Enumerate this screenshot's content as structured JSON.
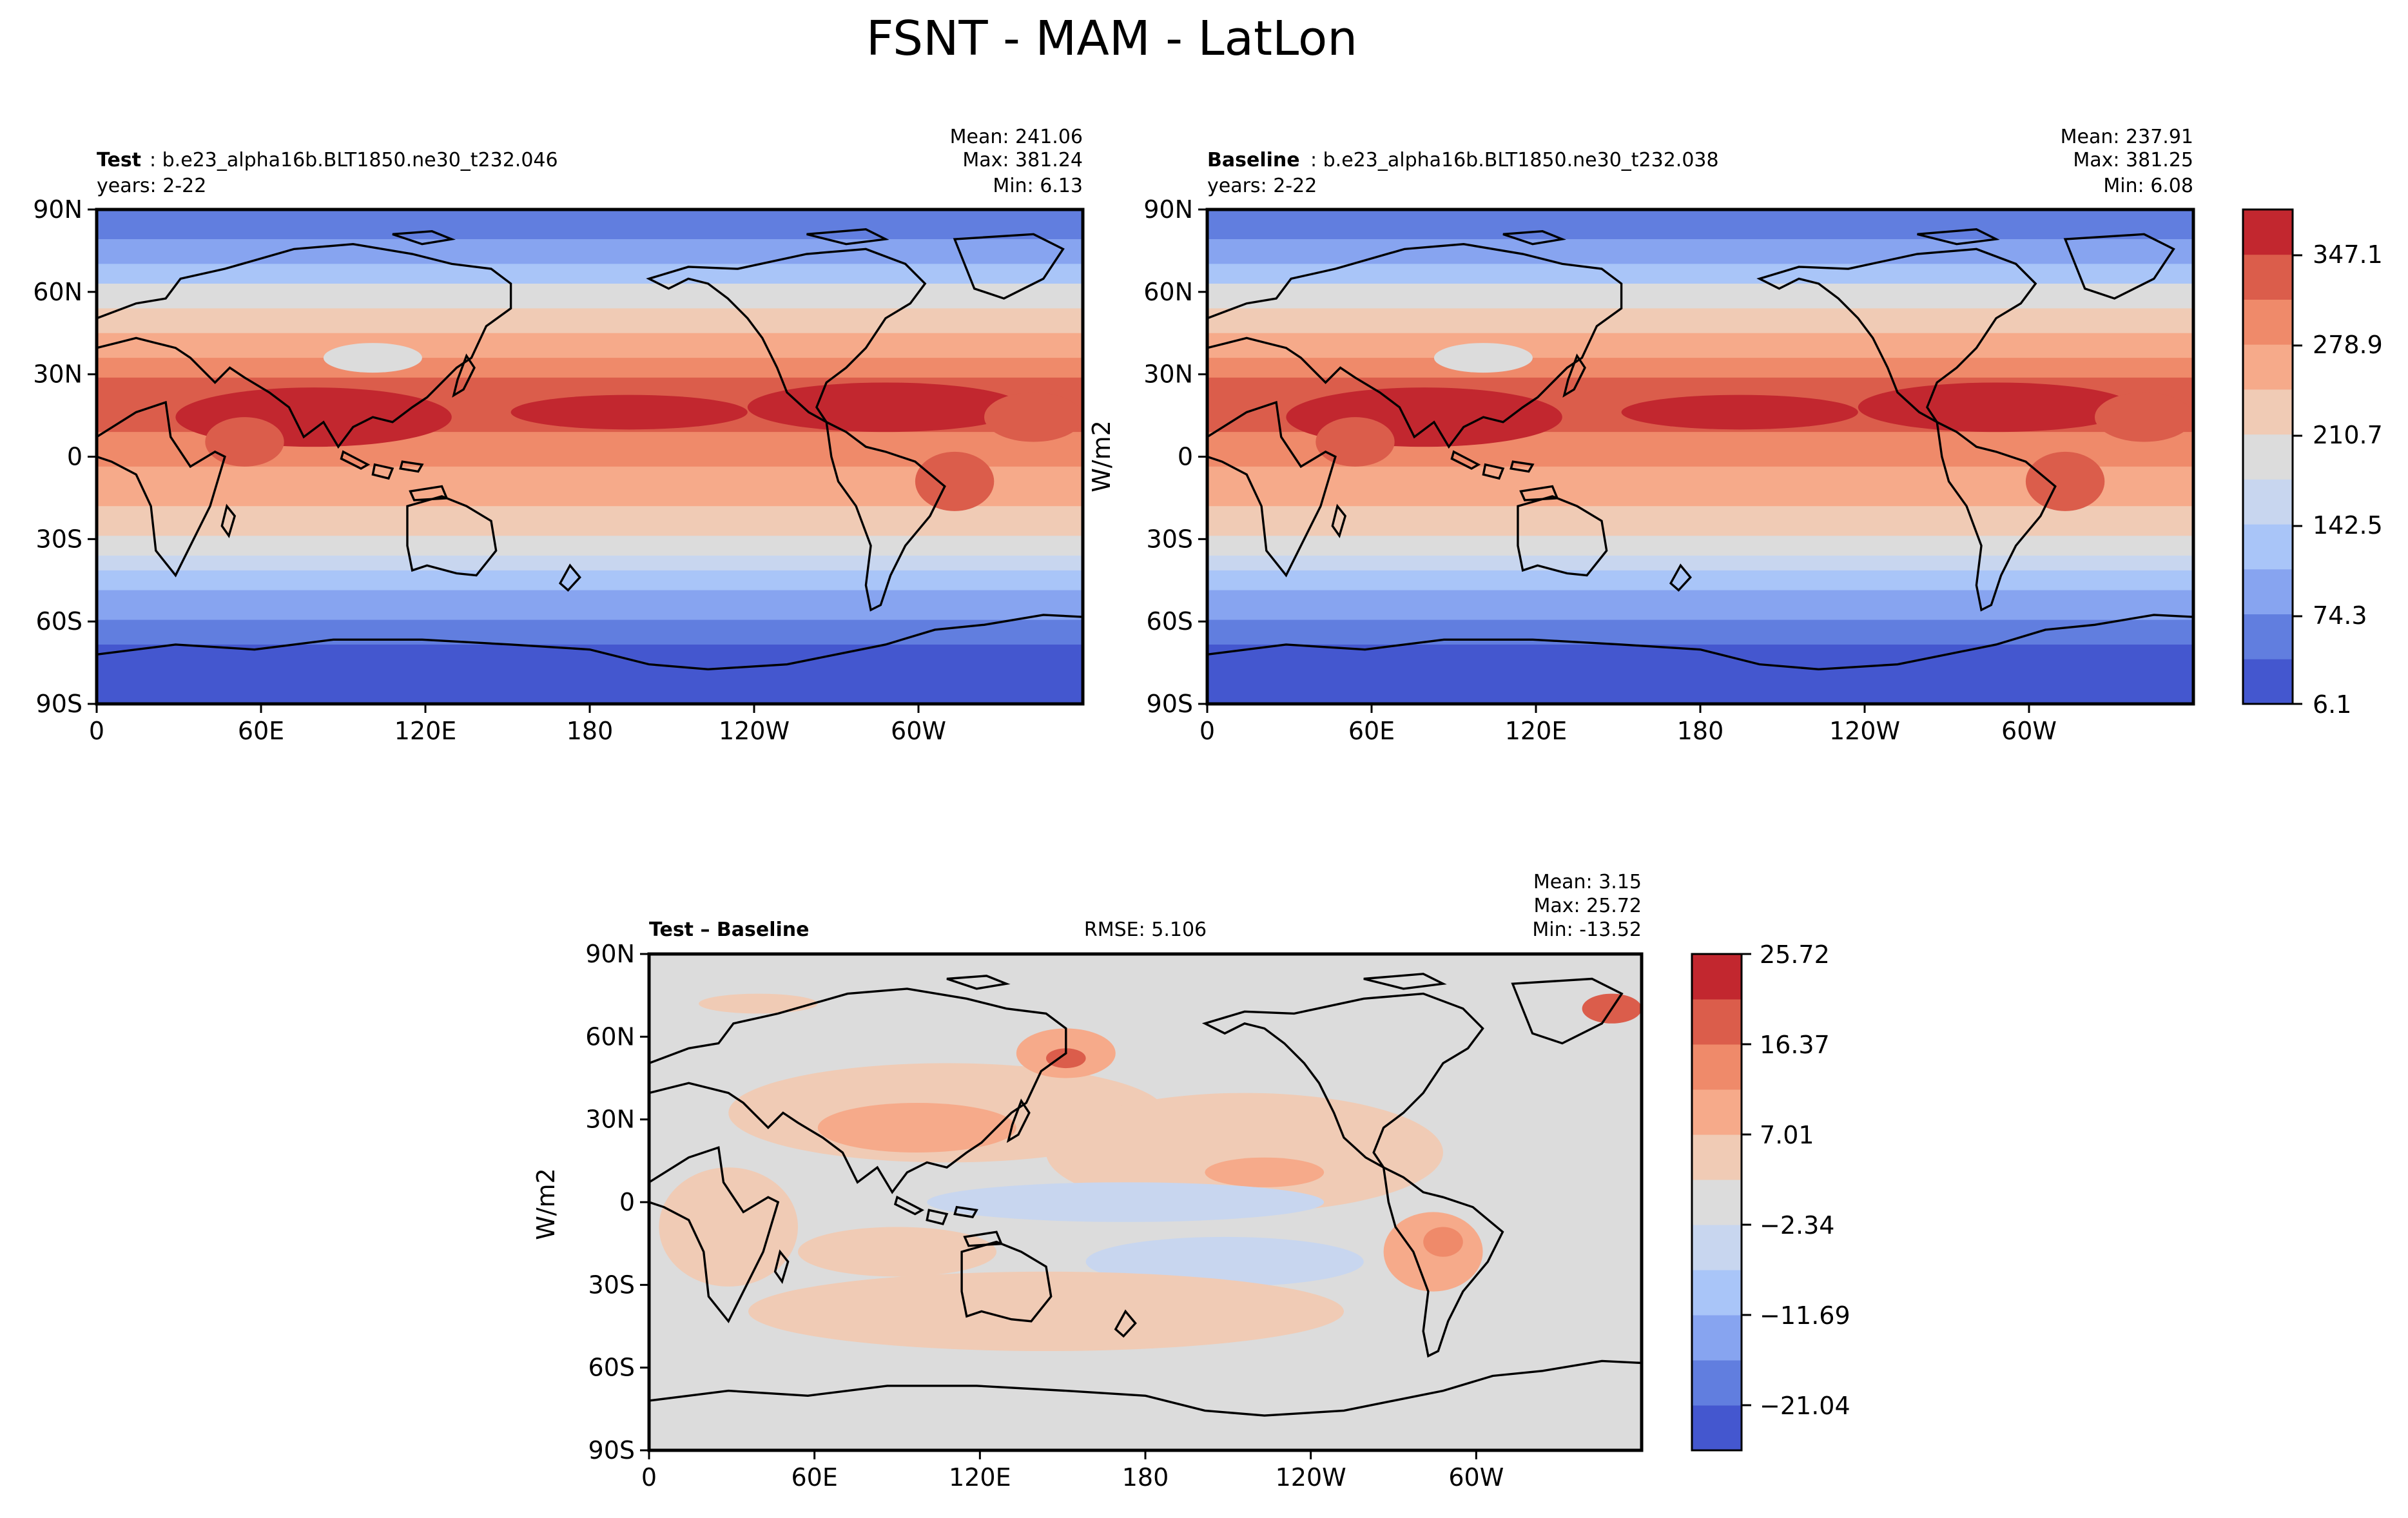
{
  "figure": {
    "title": "FSNT - MAM - LatLon"
  },
  "colors": {
    "levels": [
      "#4457cf",
      "#617edf",
      "#87a4f0",
      "#a9c5f8",
      "#c8d6ef",
      "#dcdcdc",
      "#f0cbb5",
      "#f6aa8a",
      "#ef8a6a",
      "#db5d4b",
      "#c2272f"
    ],
    "diff_levels": [
      "#4457cf",
      "#617edf",
      "#87a4f0",
      "#a9c5f8",
      "#c8d6ef",
      "#dcdcdc",
      "#f0cbb5",
      "#f6aa8a",
      "#ef8a6a",
      "#db5d4b",
      "#c2272f"
    ],
    "coast": "#000000"
  },
  "panels": {
    "test": {
      "label": "Test",
      "case": ": b.e23_alpha16b.BLT1850.ne30_t232.046",
      "years": "years: 2-22",
      "mean": "Mean: 241.06",
      "max": "Max: 381.24",
      "min": "Min:  6.13"
    },
    "baseline": {
      "label": "Baseline",
      "case": ": b.e23_alpha16b.BLT1850.ne30_t232.038",
      "years": "years: 2-22",
      "mean": "Mean: 237.91",
      "max": "Max: 381.25",
      "min": "Min:  6.08"
    },
    "diff": {
      "label": "Test – Baseline",
      "rmse": "RMSE: 5.106",
      "mean": "Mean:  3.15",
      "max": "Max: 25.72",
      "min": "Min: -13.52"
    }
  },
  "axes": {
    "lat_ticks": [
      "90N",
      "60N",
      "30N",
      "0",
      "30S",
      "60S",
      "90S"
    ],
    "lon_ticks": [
      "0",
      "60E",
      "120E",
      "180",
      "120W",
      "60W"
    ]
  },
  "colorbars": {
    "top": {
      "unit": "W/m2",
      "ticks": [
        "347.1",
        "278.9",
        "210.7",
        "142.5",
        "74.3",
        "6.1"
      ]
    },
    "diff": {
      "unit": "W/m2",
      "ticks": [
        "25.72",
        "16.37",
        "7.01",
        "−2.34",
        "−11.69",
        "−21.04"
      ]
    }
  }
}
